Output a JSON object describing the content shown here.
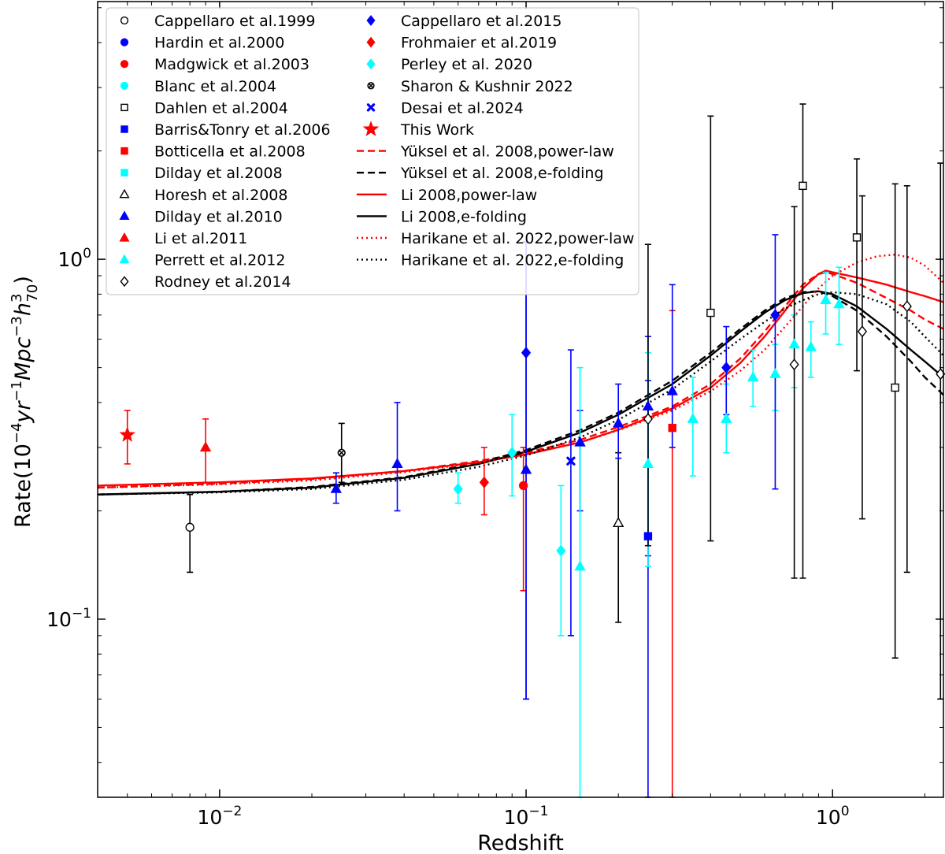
{
  "chart_data": {
    "type": "scatter",
    "title": "",
    "xlabel": "Redshift",
    "ylabel_parts": [
      "Rate(10",
      "−4",
      "yr",
      "−1",
      "Mpc",
      "−3",
      "h",
      "3",
      "70",
      ")"
    ],
    "xscale": "log",
    "yscale": "log",
    "xlim": [
      0.004,
      2.3
    ],
    "ylim": [
      0.032,
      5.2
    ],
    "x_ticks": [
      {
        "value": 0.01,
        "base": "10",
        "exp": "−2"
      },
      {
        "value": 0.1,
        "base": "10",
        "exp": "−1"
      },
      {
        "value": 1,
        "base": "10",
        "exp": "0"
      }
    ],
    "y_ticks": [
      {
        "value": 0.1,
        "base": "10",
        "exp": "−1"
      },
      {
        "value": 1,
        "base": "10",
        "exp": "0"
      }
    ],
    "legend_position": "top-left",
    "curves": [
      {
        "name": "Yüksel et al. 2008,power-law",
        "color": "#ff0000",
        "dash": "9,5",
        "x": [
          0.004,
          0.01,
          0.02,
          0.04,
          0.07,
          0.1,
          0.15,
          0.2,
          0.3,
          0.4,
          0.5,
          0.6,
          0.7,
          0.8,
          0.9,
          0.95,
          1.0,
          1.2,
          1.5,
          1.8,
          2.0,
          2.3
        ],
        "y": [
          0.232,
          0.238,
          0.245,
          0.258,
          0.275,
          0.29,
          0.315,
          0.342,
          0.39,
          0.45,
          0.53,
          0.63,
          0.74,
          0.85,
          0.91,
          0.92,
          0.91,
          0.86,
          0.78,
          0.72,
          0.68,
          0.64
        ]
      },
      {
        "name": "Yüksel et al. 2008,e-folding",
        "color": "#000000",
        "dash": "9,5",
        "x": [
          0.004,
          0.01,
          0.02,
          0.04,
          0.07,
          0.1,
          0.15,
          0.2,
          0.3,
          0.4,
          0.5,
          0.6,
          0.7,
          0.8,
          0.9,
          1.0,
          1.2,
          1.5,
          1.8,
          2.0,
          2.3
        ],
        "y": [
          0.222,
          0.226,
          0.233,
          0.248,
          0.272,
          0.295,
          0.335,
          0.375,
          0.46,
          0.55,
          0.64,
          0.72,
          0.78,
          0.81,
          0.815,
          0.79,
          0.72,
          0.61,
          0.52,
          0.47,
          0.42
        ]
      },
      {
        "name": "Li 2008,power-law",
        "color": "#ff0000",
        "dash": "",
        "x": [
          0.004,
          0.01,
          0.02,
          0.04,
          0.07,
          0.1,
          0.15,
          0.2,
          0.3,
          0.4,
          0.5,
          0.6,
          0.7,
          0.8,
          0.9,
          0.95,
          1.0,
          1.2,
          1.5,
          1.8,
          2.0,
          2.3
        ],
        "y": [
          0.235,
          0.24,
          0.246,
          0.258,
          0.273,
          0.287,
          0.31,
          0.336,
          0.385,
          0.44,
          0.515,
          0.61,
          0.72,
          0.83,
          0.91,
          0.93,
          0.92,
          0.89,
          0.85,
          0.81,
          0.79,
          0.76
        ]
      },
      {
        "name": "Li 2008,e-folding",
        "color": "#000000",
        "dash": "",
        "x": [
          0.004,
          0.01,
          0.02,
          0.04,
          0.07,
          0.1,
          0.15,
          0.2,
          0.3,
          0.4,
          0.5,
          0.6,
          0.7,
          0.8,
          0.9,
          1.0,
          1.2,
          1.5,
          1.8,
          2.0,
          2.3
        ],
        "y": [
          0.222,
          0.226,
          0.232,
          0.247,
          0.27,
          0.292,
          0.33,
          0.37,
          0.45,
          0.54,
          0.63,
          0.71,
          0.77,
          0.805,
          0.815,
          0.8,
          0.74,
          0.64,
          0.56,
          0.52,
          0.47
        ]
      },
      {
        "name": "Harikane et al. 2022,power-law",
        "color": "#ff0000",
        "dash": "2,4",
        "x": [
          0.004,
          0.01,
          0.02,
          0.04,
          0.07,
          0.1,
          0.15,
          0.2,
          0.3,
          0.4,
          0.5,
          0.6,
          0.7,
          0.8,
          0.9,
          1.0,
          1.2,
          1.4,
          1.6,
          1.8,
          2.0,
          2.3
        ],
        "y": [
          0.232,
          0.237,
          0.243,
          0.256,
          0.272,
          0.287,
          0.31,
          0.335,
          0.38,
          0.43,
          0.49,
          0.56,
          0.65,
          0.74,
          0.83,
          0.9,
          0.98,
          1.02,
          1.03,
          1.01,
          0.96,
          0.86
        ]
      },
      {
        "name": "Harikane et al. 2022,e-folding",
        "color": "#000000",
        "dash": "2,4",
        "x": [
          0.004,
          0.01,
          0.02,
          0.04,
          0.07,
          0.1,
          0.15,
          0.2,
          0.3,
          0.4,
          0.5,
          0.6,
          0.7,
          0.8,
          0.9,
          1.0,
          1.2,
          1.5,
          1.8,
          2.0,
          2.3
        ],
        "y": [
          0.222,
          0.225,
          0.23,
          0.244,
          0.265,
          0.285,
          0.32,
          0.358,
          0.435,
          0.52,
          0.6,
          0.67,
          0.73,
          0.77,
          0.8,
          0.81,
          0.8,
          0.75,
          0.67,
          0.61,
          0.54
        ]
      }
    ],
    "datasets": [
      {
        "name": "Cappellaro et al.1999",
        "marker": "circle",
        "fill": "none",
        "stroke": "#000000",
        "ecolor": "#000000",
        "points": [
          {
            "x": 0.008,
            "y": 0.18,
            "lo": 0.135,
            "hi": 0.222
          }
        ]
      },
      {
        "name": "Hardin et al.2000",
        "marker": "circle",
        "fill": "#0000ff",
        "stroke": "#0000ff",
        "ecolor": "#0000ff",
        "points": []
      },
      {
        "name": "Madgwick et al.2003",
        "marker": "circle",
        "fill": "#ff0000",
        "stroke": "#ff0000",
        "ecolor": "#ff0000",
        "points": [
          {
            "x": 0.098,
            "y": 0.235,
            "lo": 0.12,
            "hi": 0.3
          }
        ]
      },
      {
        "name": "Blanc et al.2004",
        "marker": "circle",
        "fill": "#00ffff",
        "stroke": "#00ffff",
        "ecolor": "#00ffff",
        "points": []
      },
      {
        "name": "Dahlen et al.2004",
        "marker": "square",
        "fill": "none",
        "stroke": "#000000",
        "ecolor": "#000000",
        "points": [
          {
            "x": 0.4,
            "y": 0.71,
            "lo": 0.165,
            "hi": 2.5
          },
          {
            "x": 0.8,
            "y": 1.6,
            "lo": 0.13,
            "hi": 2.7
          },
          {
            "x": 1.2,
            "y": 1.15,
            "lo": 0.49,
            "hi": 1.9
          },
          {
            "x": 1.6,
            "y": 0.44,
            "lo": 0.078,
            "hi": 1.62
          }
        ]
      },
      {
        "name": "Barris&Tonry et al.2006",
        "marker": "square",
        "fill": "#0000ff",
        "stroke": "#0000ff",
        "ecolor": "#0000ff",
        "points": [
          {
            "x": 0.25,
            "y": 0.17,
            "lo": 0.032,
            "hi": 0.46
          }
        ]
      },
      {
        "name": "Botticella et al.2008",
        "marker": "square",
        "fill": "#ff0000",
        "stroke": "#ff0000",
        "ecolor": "#ff0000",
        "points": [
          {
            "x": 0.3,
            "y": 0.34,
            "lo": 0.032,
            "hi": 0.72
          }
        ]
      },
      {
        "name": "Dilday et al.2008",
        "marker": "square",
        "fill": "#00ffff",
        "stroke": "#00ffff",
        "ecolor": "#00ffff",
        "points": []
      },
      {
        "name": "Horesh et al.2008",
        "marker": "triangle",
        "fill": "none",
        "stroke": "#000000",
        "ecolor": "#000000",
        "points": [
          {
            "x": 0.2,
            "y": 0.185,
            "lo": 0.098,
            "hi": 0.29
          }
        ]
      },
      {
        "name": "Dilday et al.2010",
        "marker": "triangle",
        "fill": "#0000ff",
        "stroke": "#0000ff",
        "ecolor": "#0000ff",
        "points": [
          {
            "x": 0.024,
            "y": 0.23,
            "lo": 0.21,
            "hi": 0.255
          },
          {
            "x": 0.038,
            "y": 0.27,
            "lo": 0.2,
            "hi": 0.4
          },
          {
            "x": 0.1,
            "y": 0.26,
            "lo": 0.06,
            "hi": 1.12
          },
          {
            "x": 0.15,
            "y": 0.31,
            "lo": 0.2,
            "hi": 0.38
          },
          {
            "x": 0.2,
            "y": 0.35,
            "lo": 0.28,
            "hi": 0.45
          },
          {
            "x": 0.25,
            "y": 0.39,
            "lo": 0.15,
            "hi": 0.61
          },
          {
            "x": 0.3,
            "y": 0.43,
            "lo": 0.3,
            "hi": 0.85
          }
        ]
      },
      {
        "name": "Li et al.2011",
        "marker": "triangle",
        "fill": "#ff0000",
        "stroke": "#ff0000",
        "ecolor": "#ff0000",
        "points": [
          {
            "x": 0.009,
            "y": 0.3,
            "lo": 0.24,
            "hi": 0.36
          }
        ]
      },
      {
        "name": "Perrett et al.2012",
        "marker": "triangle",
        "fill": "#00ffff",
        "stroke": "#00ffff",
        "ecolor": "#00ffff",
        "points": [
          {
            "x": 0.15,
            "y": 0.14,
            "lo": 0.032,
            "hi": 0.5
          },
          {
            "x": 0.25,
            "y": 0.27,
            "lo": 0.14,
            "hi": 0.55
          },
          {
            "x": 0.35,
            "y": 0.36,
            "lo": 0.25,
            "hi": 0.47
          },
          {
            "x": 0.45,
            "y": 0.36,
            "lo": 0.29,
            "hi": 0.45
          },
          {
            "x": 0.55,
            "y": 0.47,
            "lo": 0.39,
            "hi": 0.56
          },
          {
            "x": 0.65,
            "y": 0.48,
            "lo": 0.38,
            "hi": 0.58
          },
          {
            "x": 0.75,
            "y": 0.58,
            "lo": 0.44,
            "hi": 0.7
          },
          {
            "x": 0.85,
            "y": 0.57,
            "lo": 0.47,
            "hi": 0.67
          },
          {
            "x": 0.95,
            "y": 0.77,
            "lo": 0.62,
            "hi": 0.92
          },
          {
            "x": 1.05,
            "y": 0.75,
            "lo": 0.58,
            "hi": 0.95
          }
        ]
      },
      {
        "name": "Rodney et al.2014",
        "marker": "diamond",
        "fill": "none",
        "stroke": "#000000",
        "ecolor": "#000000",
        "points": [
          {
            "x": 0.25,
            "y": 0.36,
            "lo": 0.16,
            "hi": 1.1
          },
          {
            "x": 0.75,
            "y": 0.51,
            "lo": 0.13,
            "hi": 1.4
          },
          {
            "x": 1.25,
            "y": 0.63,
            "lo": 0.19,
            "hi": 1.5
          },
          {
            "x": 1.75,
            "y": 0.74,
            "lo": 0.135,
            "hi": 1.6
          },
          {
            "x": 2.25,
            "y": 0.48,
            "lo": 0.06,
            "hi": 1.85
          }
        ]
      },
      {
        "name": "Cappellaro et al.2015",
        "marker": "diamond",
        "fill": "#0000ff",
        "stroke": "#0000ff",
        "ecolor": "#0000ff",
        "points": [
          {
            "x": 0.1,
            "y": 0.55,
            "lo": 0.06,
            "hi": 1.12
          },
          {
            "x": 0.45,
            "y": 0.5,
            "lo": 0.37,
            "hi": 0.65
          },
          {
            "x": 0.65,
            "y": 0.7,
            "lo": 0.23,
            "hi": 1.17
          }
        ]
      },
      {
        "name": "Frohmaier et al.2019",
        "marker": "diamond",
        "fill": "#ff0000",
        "stroke": "#ff0000",
        "ecolor": "#ff0000",
        "points": [
          {
            "x": 0.073,
            "y": 0.24,
            "lo": 0.195,
            "hi": 0.3
          }
        ]
      },
      {
        "name": "Perley et al. 2020",
        "marker": "diamond",
        "fill": "#00ffff",
        "stroke": "#00ffff",
        "ecolor": "#00ffff",
        "points": [
          {
            "x": 0.06,
            "y": 0.23,
            "lo": 0.21,
            "hi": 0.255
          },
          {
            "x": 0.09,
            "y": 0.29,
            "lo": 0.22,
            "hi": 0.37
          },
          {
            "x": 0.13,
            "y": 0.155,
            "lo": 0.09,
            "hi": 0.235
          }
        ]
      },
      {
        "name": "Sharon & Kushnir 2022",
        "marker": "xcircle",
        "fill": "none",
        "stroke": "#000000",
        "ecolor": "#000000",
        "points": [
          {
            "x": 0.025,
            "y": 0.29,
            "lo": 0.24,
            "hi": 0.35
          }
        ]
      },
      {
        "name": "Desai et al.2024",
        "marker": "xcross",
        "fill": "#0000ff",
        "stroke": "#0000ff",
        "ecolor": "#0000ff",
        "points": [
          {
            "x": 0.14,
            "y": 0.275,
            "lo": 0.09,
            "hi": 0.56
          }
        ]
      },
      {
        "name": "This Work",
        "marker": "star",
        "fill": "#ff0000",
        "stroke": "#ff0000",
        "ecolor": "#ff0000",
        "points": [
          {
            "x": 0.005,
            "y": 0.325,
            "lo": 0.27,
            "hi": 0.38
          }
        ]
      }
    ]
  }
}
